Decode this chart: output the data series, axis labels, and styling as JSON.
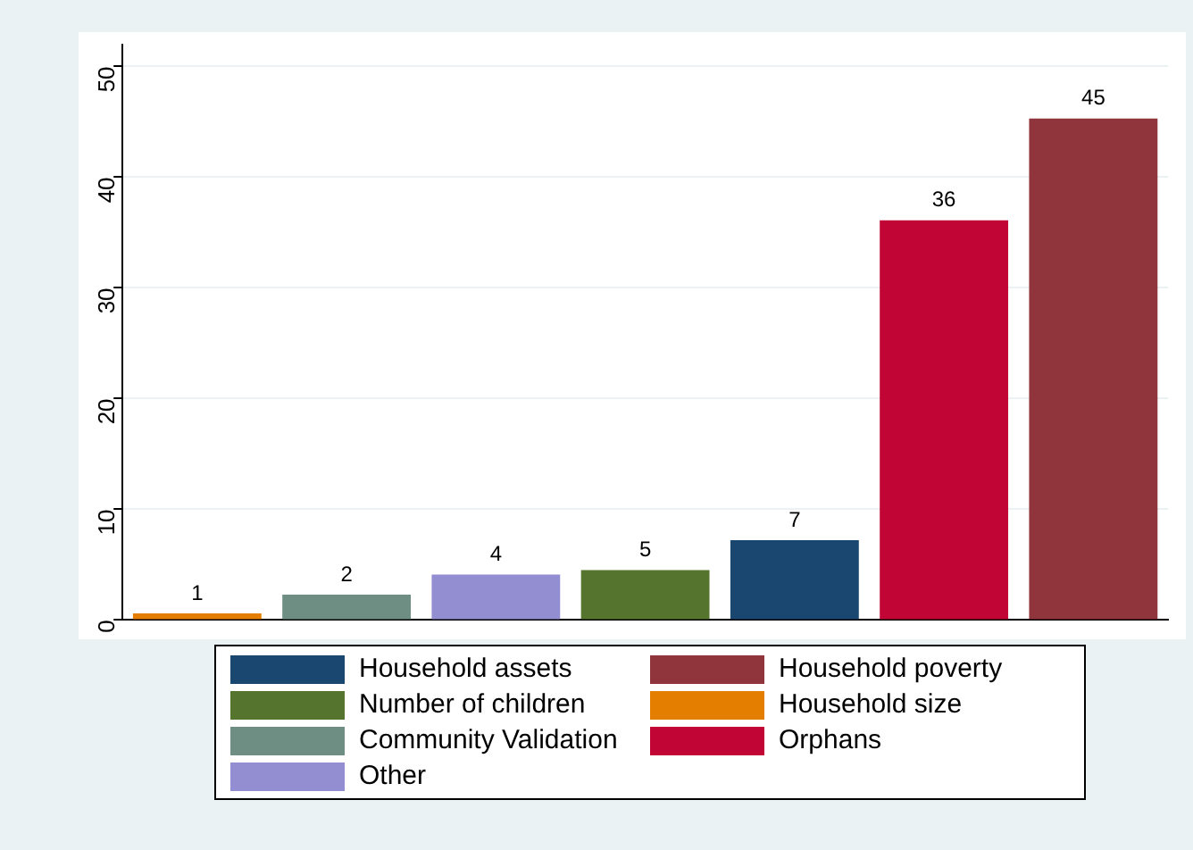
{
  "chart_data": {
    "type": "bar",
    "categories": [
      null,
      null,
      null,
      null,
      null,
      null,
      null
    ],
    "series": [
      {
        "name": "Household assets",
        "color": "#1a476f",
        "values": [
          null,
          null,
          null,
          null,
          7.2,
          null,
          null
        ],
        "value_labels": [
          null,
          null,
          null,
          null,
          "7",
          null,
          null
        ]
      },
      {
        "name": "Household poverty",
        "color": "#90353b",
        "values": [
          null,
          null,
          null,
          null,
          null,
          null,
          45.3
        ],
        "value_labels": [
          null,
          null,
          null,
          null,
          null,
          null,
          "45"
        ]
      },
      {
        "name": "Number of children",
        "color": "#55752f",
        "values": [
          null,
          null,
          null,
          4.5,
          null,
          null,
          null
        ],
        "value_labels": [
          null,
          null,
          null,
          "5",
          null,
          null,
          null
        ]
      },
      {
        "name": "Household size",
        "color": "#e37e00",
        "values": [
          0.6,
          null,
          null,
          null,
          null,
          null,
          null
        ],
        "value_labels": [
          "1",
          null,
          null,
          null,
          null,
          null,
          null
        ]
      },
      {
        "name": "Community Validation",
        "color": "#6e8e84",
        "values": [
          null,
          2.3,
          null,
          null,
          null,
          null,
          null
        ],
        "value_labels": [
          null,
          "2",
          null,
          null,
          null,
          null,
          null
        ]
      },
      {
        "name": "Orphans",
        "color": "#c10534",
        "values": [
          null,
          null,
          null,
          null,
          null,
          36.1,
          null
        ],
        "value_labels": [
          null,
          null,
          null,
          null,
          null,
          "36",
          null
        ]
      },
      {
        "name": "Other",
        "color": "#938dd2",
        "values": [
          null,
          null,
          4.1,
          null,
          null,
          null,
          null
        ],
        "value_labels": [
          null,
          null,
          "4",
          null,
          null,
          null,
          null
        ]
      }
    ],
    "ylim": [
      0,
      52
    ],
    "yticks": [
      0,
      10,
      20,
      30,
      40,
      50
    ],
    "grid": "y",
    "legend": "bottom"
  }
}
